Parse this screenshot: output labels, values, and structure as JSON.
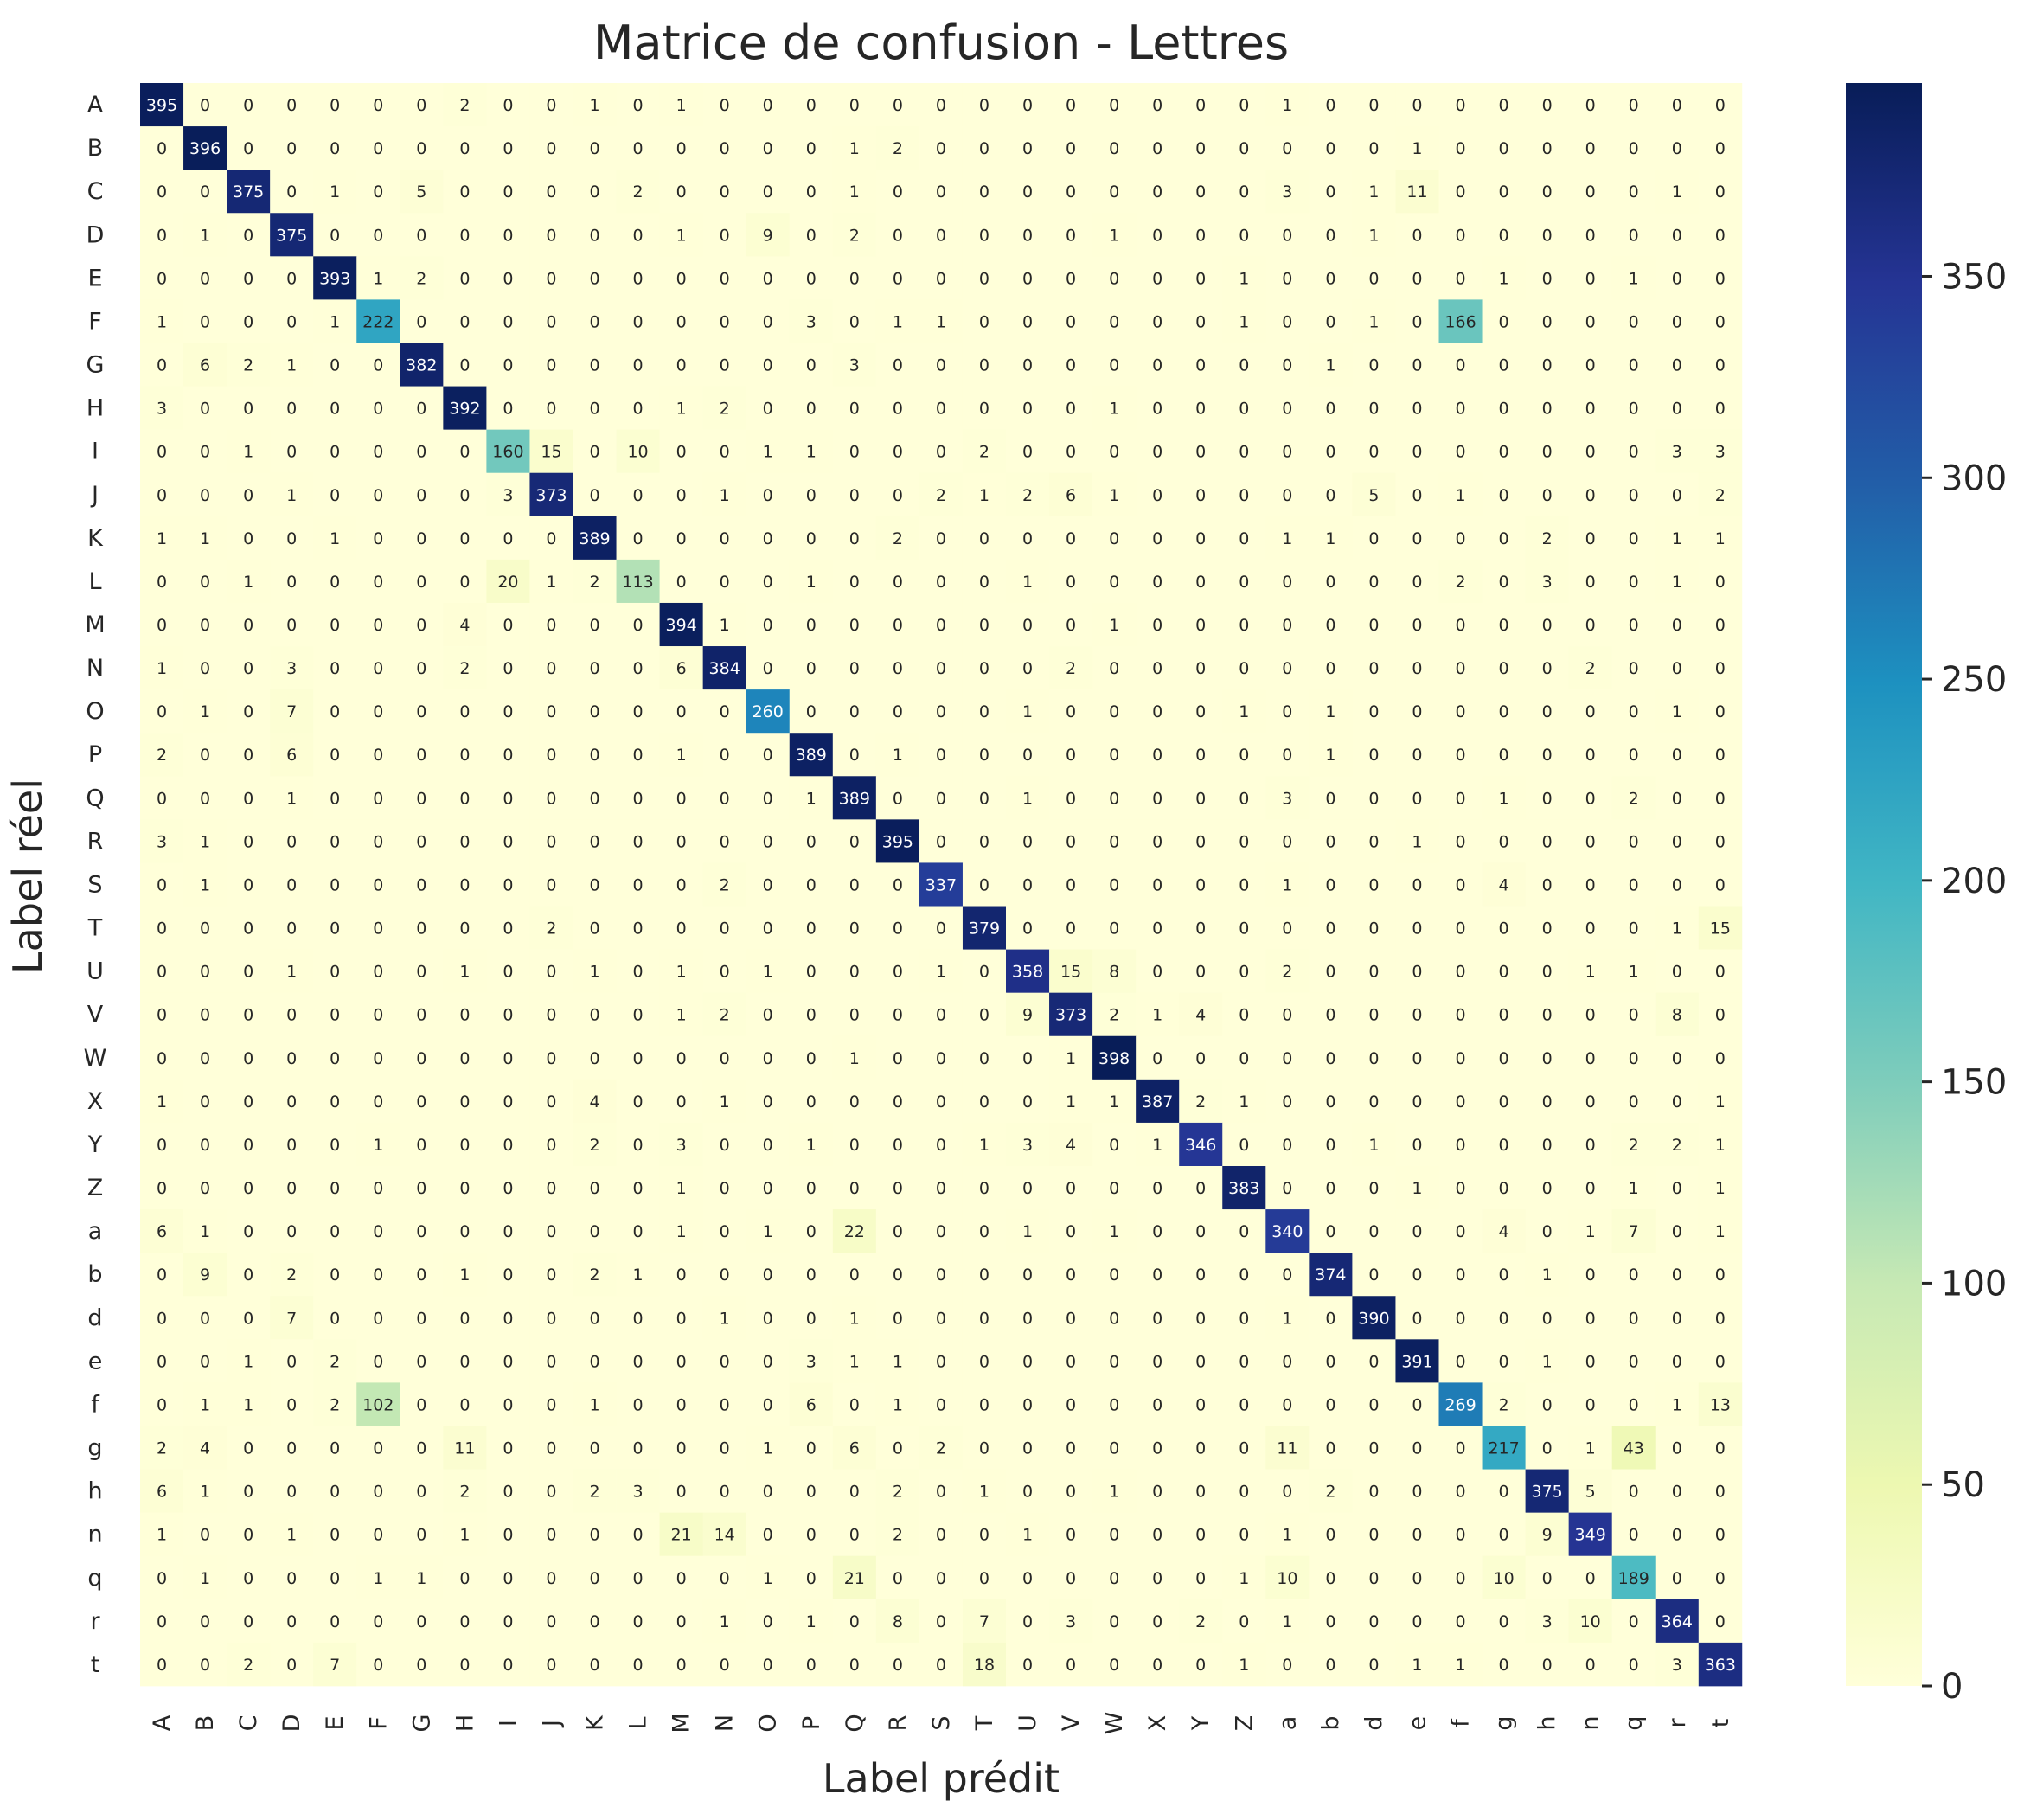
{
  "chart_data": {
    "type": "heatmap",
    "title": "Matrice de confusion - Lettres",
    "xlabel": "Label prédit",
    "ylabel": "Label réel",
    "labels": [
      "A",
      "B",
      "C",
      "D",
      "E",
      "F",
      "G",
      "H",
      "I",
      "J",
      "K",
      "L",
      "M",
      "N",
      "O",
      "P",
      "Q",
      "R",
      "S",
      "T",
      "U",
      "V",
      "W",
      "X",
      "Y",
      "Z",
      "a",
      "b",
      "d",
      "e",
      "f",
      "g",
      "h",
      "n",
      "q",
      "r",
      "t"
    ],
    "matrix": [
      [
        395,
        0,
        0,
        0,
        0,
        0,
        0,
        2,
        0,
        0,
        1,
        0,
        1,
        0,
        0,
        0,
        0,
        0,
        0,
        0,
        0,
        0,
        0,
        0,
        0,
        0,
        1,
        0,
        0,
        0,
        0,
        0,
        0,
        0,
        0,
        0,
        0
      ],
      [
        0,
        396,
        0,
        0,
        0,
        0,
        0,
        0,
        0,
        0,
        0,
        0,
        0,
        0,
        0,
        0,
        1,
        2,
        0,
        0,
        0,
        0,
        0,
        0,
        0,
        0,
        0,
        0,
        0,
        1,
        0,
        0,
        0,
        0,
        0,
        0,
        0
      ],
      [
        0,
        0,
        375,
        0,
        1,
        0,
        5,
        0,
        0,
        0,
        0,
        2,
        0,
        0,
        0,
        0,
        1,
        0,
        0,
        0,
        0,
        0,
        0,
        0,
        0,
        0,
        3,
        0,
        1,
        11,
        0,
        0,
        0,
        0,
        0,
        1,
        0
      ],
      [
        0,
        1,
        0,
        375,
        0,
        0,
        0,
        0,
        0,
        0,
        0,
        0,
        1,
        0,
        9,
        0,
        2,
        0,
        0,
        0,
        0,
        0,
        1,
        0,
        0,
        0,
        0,
        0,
        1,
        0,
        0,
        0,
        0,
        0,
        0,
        0,
        0
      ],
      [
        0,
        0,
        0,
        0,
        393,
        1,
        2,
        0,
        0,
        0,
        0,
        0,
        0,
        0,
        0,
        0,
        0,
        0,
        0,
        0,
        0,
        0,
        0,
        0,
        0,
        1,
        0,
        0,
        0,
        0,
        0,
        1,
        0,
        0,
        1,
        0,
        0
      ],
      [
        1,
        0,
        0,
        0,
        1,
        222,
        0,
        0,
        0,
        0,
        0,
        0,
        0,
        0,
        0,
        3,
        0,
        1,
        1,
        0,
        0,
        0,
        0,
        0,
        0,
        1,
        0,
        0,
        1,
        0,
        166,
        0,
        0,
        0,
        0,
        0,
        0
      ],
      [
        0,
        6,
        2,
        1,
        0,
        0,
        382,
        0,
        0,
        0,
        0,
        0,
        0,
        0,
        0,
        0,
        3,
        0,
        0,
        0,
        0,
        0,
        0,
        0,
        0,
        0,
        0,
        1,
        0,
        0,
        0,
        0,
        0,
        0,
        0,
        0,
        0
      ],
      [
        3,
        0,
        0,
        0,
        0,
        0,
        0,
        392,
        0,
        0,
        0,
        0,
        1,
        2,
        0,
        0,
        0,
        0,
        0,
        0,
        0,
        0,
        1,
        0,
        0,
        0,
        0,
        0,
        0,
        0,
        0,
        0,
        0,
        0,
        0,
        0,
        0
      ],
      [
        0,
        0,
        1,
        0,
        0,
        0,
        0,
        0,
        160,
        15,
        0,
        10,
        0,
        0,
        1,
        1,
        0,
        0,
        0,
        2,
        0,
        0,
        0,
        0,
        0,
        0,
        0,
        0,
        0,
        0,
        0,
        0,
        0,
        0,
        0,
        3,
        3
      ],
      [
        0,
        0,
        0,
        1,
        0,
        0,
        0,
        0,
        3,
        373,
        0,
        0,
        0,
        1,
        0,
        0,
        0,
        0,
        2,
        1,
        2,
        6,
        1,
        0,
        0,
        0,
        0,
        0,
        5,
        0,
        1,
        0,
        0,
        0,
        0,
        0,
        2
      ],
      [
        1,
        1,
        0,
        0,
        1,
        0,
        0,
        0,
        0,
        0,
        389,
        0,
        0,
        0,
        0,
        0,
        0,
        2,
        0,
        0,
        0,
        0,
        0,
        0,
        0,
        0,
        1,
        1,
        0,
        0,
        0,
        0,
        2,
        0,
        0,
        1,
        1
      ],
      [
        0,
        0,
        1,
        0,
        0,
        0,
        0,
        0,
        20,
        1,
        2,
        113,
        0,
        0,
        0,
        1,
        0,
        0,
        0,
        0,
        1,
        0,
        0,
        0,
        0,
        0,
        0,
        0,
        0,
        0,
        2,
        0,
        3,
        0,
        0,
        1,
        0
      ],
      [
        0,
        0,
        0,
        0,
        0,
        0,
        0,
        4,
        0,
        0,
        0,
        0,
        394,
        1,
        0,
        0,
        0,
        0,
        0,
        0,
        0,
        0,
        1,
        0,
        0,
        0,
        0,
        0,
        0,
        0,
        0,
        0,
        0,
        0,
        0,
        0,
        0
      ],
      [
        1,
        0,
        0,
        3,
        0,
        0,
        0,
        2,
        0,
        0,
        0,
        0,
        6,
        384,
        0,
        0,
        0,
        0,
        0,
        0,
        0,
        2,
        0,
        0,
        0,
        0,
        0,
        0,
        0,
        0,
        0,
        0,
        0,
        2,
        0,
        0,
        0
      ],
      [
        0,
        1,
        0,
        7,
        0,
        0,
        0,
        0,
        0,
        0,
        0,
        0,
        0,
        0,
        260,
        0,
        0,
        0,
        0,
        0,
        1,
        0,
        0,
        0,
        0,
        1,
        0,
        1,
        0,
        0,
        0,
        0,
        0,
        0,
        0,
        1,
        0
      ],
      [
        2,
        0,
        0,
        6,
        0,
        0,
        0,
        0,
        0,
        0,
        0,
        0,
        1,
        0,
        0,
        389,
        0,
        1,
        0,
        0,
        0,
        0,
        0,
        0,
        0,
        0,
        0,
        1,
        0,
        0,
        0,
        0,
        0,
        0,
        0,
        0,
        0
      ],
      [
        0,
        0,
        0,
        1,
        0,
        0,
        0,
        0,
        0,
        0,
        0,
        0,
        0,
        0,
        0,
        1,
        389,
        0,
        0,
        0,
        1,
        0,
        0,
        0,
        0,
        0,
        3,
        0,
        0,
        0,
        0,
        1,
        0,
        0,
        2,
        0,
        0
      ],
      [
        3,
        1,
        0,
        0,
        0,
        0,
        0,
        0,
        0,
        0,
        0,
        0,
        0,
        0,
        0,
        0,
        0,
        395,
        0,
        0,
        0,
        0,
        0,
        0,
        0,
        0,
        0,
        0,
        0,
        1,
        0,
        0,
        0,
        0,
        0,
        0,
        0
      ],
      [
        0,
        1,
        0,
        0,
        0,
        0,
        0,
        0,
        0,
        0,
        0,
        0,
        0,
        2,
        0,
        0,
        0,
        0,
        337,
        0,
        0,
        0,
        0,
        0,
        0,
        0,
        1,
        0,
        0,
        0,
        0,
        4,
        0,
        0,
        0,
        0,
        0
      ],
      [
        0,
        0,
        0,
        0,
        0,
        0,
        0,
        0,
        0,
        2,
        0,
        0,
        0,
        0,
        0,
        0,
        0,
        0,
        0,
        379,
        0,
        0,
        0,
        0,
        0,
        0,
        0,
        0,
        0,
        0,
        0,
        0,
        0,
        0,
        0,
        1,
        15
      ],
      [
        0,
        0,
        0,
        1,
        0,
        0,
        0,
        1,
        0,
        0,
        1,
        0,
        1,
        0,
        1,
        0,
        0,
        0,
        1,
        0,
        358,
        15,
        8,
        0,
        0,
        0,
        2,
        0,
        0,
        0,
        0,
        0,
        0,
        1,
        1,
        0,
        0
      ],
      [
        0,
        0,
        0,
        0,
        0,
        0,
        0,
        0,
        0,
        0,
        0,
        0,
        1,
        2,
        0,
        0,
        0,
        0,
        0,
        0,
        9,
        373,
        2,
        1,
        4,
        0,
        0,
        0,
        0,
        0,
        0,
        0,
        0,
        0,
        0,
        8,
        0
      ],
      [
        0,
        0,
        0,
        0,
        0,
        0,
        0,
        0,
        0,
        0,
        0,
        0,
        0,
        0,
        0,
        0,
        1,
        0,
        0,
        0,
        0,
        1,
        398,
        0,
        0,
        0,
        0,
        0,
        0,
        0,
        0,
        0,
        0,
        0,
        0,
        0,
        0
      ],
      [
        1,
        0,
        0,
        0,
        0,
        0,
        0,
        0,
        0,
        0,
        4,
        0,
        0,
        1,
        0,
        0,
        0,
        0,
        0,
        0,
        0,
        1,
        1,
        387,
        2,
        1,
        0,
        0,
        0,
        0,
        0,
        0,
        0,
        0,
        0,
        0,
        1
      ],
      [
        0,
        0,
        0,
        0,
        0,
        1,
        0,
        0,
        0,
        0,
        2,
        0,
        3,
        0,
        0,
        1,
        0,
        0,
        0,
        1,
        3,
        4,
        0,
        1,
        346,
        0,
        0,
        0,
        1,
        0,
        0,
        0,
        0,
        0,
        2,
        2,
        1
      ],
      [
        0,
        0,
        0,
        0,
        0,
        0,
        0,
        0,
        0,
        0,
        0,
        0,
        1,
        0,
        0,
        0,
        0,
        0,
        0,
        0,
        0,
        0,
        0,
        0,
        0,
        383,
        0,
        0,
        0,
        1,
        0,
        0,
        0,
        0,
        1,
        0,
        1
      ],
      [
        6,
        1,
        0,
        0,
        0,
        0,
        0,
        0,
        0,
        0,
        0,
        0,
        1,
        0,
        1,
        0,
        22,
        0,
        0,
        0,
        1,
        0,
        1,
        0,
        0,
        0,
        340,
        0,
        0,
        0,
        0,
        4,
        0,
        1,
        7,
        0,
        1
      ],
      [
        0,
        9,
        0,
        2,
        0,
        0,
        0,
        1,
        0,
        0,
        2,
        1,
        0,
        0,
        0,
        0,
        0,
        0,
        0,
        0,
        0,
        0,
        0,
        0,
        0,
        0,
        0,
        374,
        0,
        0,
        0,
        0,
        1,
        0,
        0,
        0,
        0
      ],
      [
        0,
        0,
        0,
        7,
        0,
        0,
        0,
        0,
        0,
        0,
        0,
        0,
        0,
        1,
        0,
        0,
        1,
        0,
        0,
        0,
        0,
        0,
        0,
        0,
        0,
        0,
        1,
        0,
        390,
        0,
        0,
        0,
        0,
        0,
        0,
        0,
        0
      ],
      [
        0,
        0,
        1,
        0,
        2,
        0,
        0,
        0,
        0,
        0,
        0,
        0,
        0,
        0,
        0,
        3,
        1,
        1,
        0,
        0,
        0,
        0,
        0,
        0,
        0,
        0,
        0,
        0,
        0,
        391,
        0,
        0,
        1,
        0,
        0,
        0,
        0
      ],
      [
        0,
        1,
        1,
        0,
        2,
        102,
        0,
        0,
        0,
        0,
        1,
        0,
        0,
        0,
        0,
        6,
        0,
        1,
        0,
        0,
        0,
        0,
        0,
        0,
        0,
        0,
        0,
        0,
        0,
        0,
        269,
        2,
        0,
        0,
        0,
        1,
        13
      ],
      [
        2,
        4,
        0,
        0,
        0,
        0,
        0,
        11,
        0,
        0,
        0,
        0,
        0,
        0,
        1,
        0,
        6,
        0,
        2,
        0,
        0,
        0,
        0,
        0,
        0,
        0,
        11,
        0,
        0,
        0,
        0,
        217,
        0,
        1,
        43,
        0,
        0
      ],
      [
        6,
        1,
        0,
        0,
        0,
        0,
        0,
        2,
        0,
        0,
        2,
        3,
        0,
        0,
        0,
        0,
        0,
        2,
        0,
        1,
        0,
        0,
        1,
        0,
        0,
        0,
        0,
        2,
        0,
        0,
        0,
        0,
        375,
        5,
        0,
        0,
        0
      ],
      [
        1,
        0,
        0,
        1,
        0,
        0,
        0,
        1,
        0,
        0,
        0,
        0,
        21,
        14,
        0,
        0,
        0,
        2,
        0,
        0,
        1,
        0,
        0,
        0,
        0,
        0,
        1,
        0,
        0,
        0,
        0,
        0,
        9,
        349,
        0,
        0,
        0
      ],
      [
        0,
        1,
        0,
        0,
        0,
        1,
        1,
        0,
        0,
        0,
        0,
        0,
        0,
        0,
        1,
        0,
        21,
        0,
        0,
        0,
        0,
        0,
        0,
        0,
        0,
        1,
        10,
        0,
        0,
        0,
        0,
        10,
        0,
        0,
        189,
        0,
        0
      ],
      [
        0,
        0,
        0,
        0,
        0,
        0,
        0,
        0,
        0,
        0,
        0,
        0,
        0,
        1,
        0,
        1,
        0,
        8,
        0,
        7,
        0,
        3,
        0,
        0,
        2,
        0,
        1,
        0,
        0,
        0,
        0,
        0,
        3,
        10,
        0,
        364,
        0
      ],
      [
        0,
        0,
        2,
        0,
        7,
        0,
        0,
        0,
        0,
        0,
        0,
        0,
        0,
        0,
        0,
        0,
        0,
        0,
        0,
        18,
        0,
        0,
        0,
        0,
        0,
        1,
        0,
        0,
        0,
        1,
        1,
        0,
        0,
        0,
        0,
        3,
        363
      ]
    ],
    "colorbar": {
      "colormap": "YlGnBu",
      "vmin": 0,
      "vmax": 398,
      "ticks": [
        0,
        50,
        100,
        150,
        200,
        250,
        300,
        350
      ]
    },
    "colors": [
      "#ffffd9",
      "#edf8b1",
      "#c7e9b4",
      "#7fcdbb",
      "#41b6c4",
      "#1d91c0",
      "#225ea8",
      "#253494",
      "#081d58"
    ]
  }
}
